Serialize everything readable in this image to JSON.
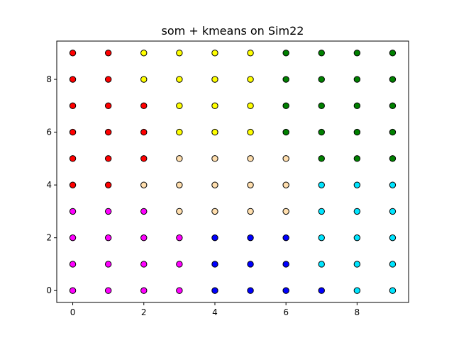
{
  "chart_data": {
    "type": "scatter",
    "title": "som + kmeans on Sim22",
    "xlabel": "",
    "ylabel": "",
    "xlim": [
      -0.45,
      9.45
    ],
    "ylim": [
      -0.45,
      9.45
    ],
    "xticks": [
      0,
      2,
      4,
      6,
      8
    ],
    "yticks": [
      0,
      2,
      4,
      6,
      8
    ],
    "grid": false,
    "legend": "none",
    "marker": "circle-black-edge",
    "cluster_colors": {
      "R": "#ff0000",
      "Y": "#ffff00",
      "G": "#008000",
      "P": "#ffdead",
      "C": "#00e5ff",
      "M": "#ff00ff",
      "B": "#0000ff"
    },
    "grid_rows_top_to_bottom": [
      "RRYYYYGGGG",
      "RRYYYYGGGG",
      "RRRYYYGGGG",
      "RRRYYYGGGG",
      "RRRPPPPGGG",
      "RRPPPPPCCC",
      "MMMPPPPCCC",
      "MMMMBBBCCC",
      "MMMMBBBCCC",
      "MMMMBBBBCC"
    ]
  }
}
